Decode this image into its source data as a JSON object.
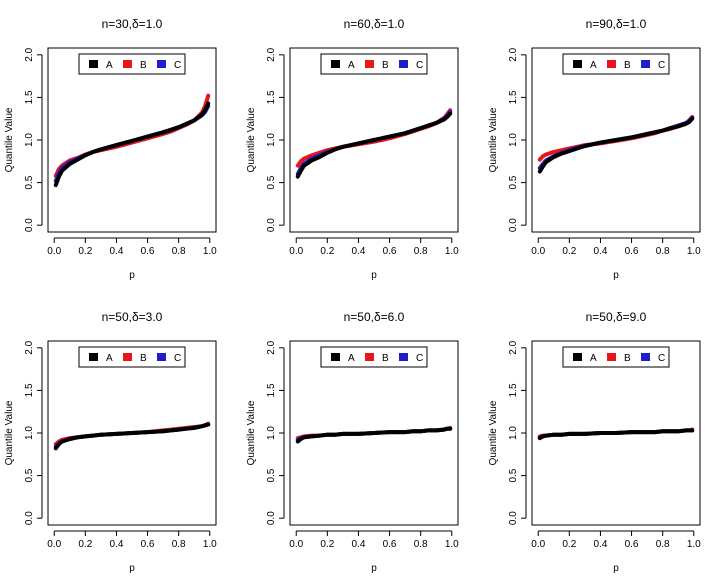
{
  "figure": {
    "background": "#ffffff"
  },
  "chart_data": [
    {
      "type": "line",
      "title": "n=30,δ=1.0",
      "xlabel": "p",
      "ylabel": "Quantile Value",
      "xlim": [
        -0.04,
        1.04
      ],
      "ylim": [
        -0.08,
        2.08
      ],
      "xticks": [
        "0.0",
        "0.2",
        "0.4",
        "0.6",
        "0.8",
        "1.0"
      ],
      "yticks": [
        "0.0",
        "0.5",
        "1.0",
        "1.5",
        "2.0"
      ],
      "legend": {
        "position": "top",
        "entries": [
          "A",
          "B",
          "C"
        ]
      },
      "x": [
        0.01,
        0.03,
        0.05,
        0.1,
        0.15,
        0.2,
        0.25,
        0.3,
        0.4,
        0.5,
        0.6,
        0.7,
        0.75,
        0.8,
        0.85,
        0.9,
        0.95,
        0.97,
        0.99
      ],
      "series": [
        {
          "name": "B",
          "color": "#e8161b",
          "values": [
            0.58,
            0.66,
            0.7,
            0.76,
            0.79,
            0.83,
            0.86,
            0.88,
            0.92,
            0.97,
            1.02,
            1.07,
            1.1,
            1.14,
            1.18,
            1.23,
            1.32,
            1.4,
            1.52
          ]
        },
        {
          "name": "C",
          "color": "#1f1fc8",
          "values": [
            0.52,
            0.61,
            0.67,
            0.74,
            0.78,
            0.82,
            0.86,
            0.89,
            0.94,
            0.99,
            1.04,
            1.09,
            1.12,
            1.15,
            1.19,
            1.23,
            1.29,
            1.33,
            1.4
          ]
        },
        {
          "name": "A",
          "color": "#000000",
          "values": [
            0.47,
            0.57,
            0.64,
            0.72,
            0.77,
            0.82,
            0.86,
            0.89,
            0.94,
            0.99,
            1.04,
            1.09,
            1.12,
            1.15,
            1.19,
            1.23,
            1.3,
            1.35,
            1.43
          ]
        }
      ]
    },
    {
      "type": "line",
      "title": "n=60,δ=1.0",
      "xlabel": "p",
      "ylabel": "Quantile Value",
      "xlim": [
        -0.04,
        1.04
      ],
      "ylim": [
        -0.08,
        2.08
      ],
      "xticks": [
        "0.0",
        "0.2",
        "0.4",
        "0.6",
        "0.8",
        "1.0"
      ],
      "yticks": [
        "0.0",
        "0.5",
        "1.0",
        "1.5",
        "2.0"
      ],
      "legend": {
        "position": "top",
        "entries": [
          "A",
          "B",
          "C"
        ]
      },
      "x": [
        0.01,
        0.03,
        0.05,
        0.1,
        0.15,
        0.2,
        0.25,
        0.3,
        0.4,
        0.5,
        0.6,
        0.7,
        0.75,
        0.8,
        0.85,
        0.9,
        0.95,
        0.97,
        0.99
      ],
      "series": [
        {
          "name": "B",
          "color": "#e8161b",
          "values": [
            0.7,
            0.75,
            0.78,
            0.82,
            0.85,
            0.88,
            0.9,
            0.92,
            0.95,
            0.98,
            1.02,
            1.07,
            1.1,
            1.13,
            1.16,
            1.2,
            1.26,
            1.3,
            1.35
          ]
        },
        {
          "name": "C",
          "color": "#1f1fc8",
          "values": [
            0.6,
            0.67,
            0.72,
            0.78,
            0.82,
            0.86,
            0.89,
            0.92,
            0.96,
            1.0,
            1.04,
            1.08,
            1.11,
            1.14,
            1.17,
            1.2,
            1.25,
            1.28,
            1.33
          ]
        },
        {
          "name": "A",
          "color": "#000000",
          "values": [
            0.57,
            0.64,
            0.7,
            0.76,
            0.8,
            0.85,
            0.89,
            0.92,
            0.96,
            1.0,
            1.04,
            1.08,
            1.11,
            1.14,
            1.17,
            1.2,
            1.24,
            1.27,
            1.31
          ]
        }
      ]
    },
    {
      "type": "line",
      "title": "n=90,δ=1.0",
      "xlabel": "p",
      "ylabel": "Quantile Value",
      "xlim": [
        -0.04,
        1.04
      ],
      "ylim": [
        -0.08,
        2.08
      ],
      "xticks": [
        "0.0",
        "0.2",
        "0.4",
        "0.6",
        "0.8",
        "1.0"
      ],
      "yticks": [
        "0.0",
        "0.5",
        "1.0",
        "1.5",
        "2.0"
      ],
      "legend": {
        "position": "top",
        "entries": [
          "A",
          "B",
          "C"
        ]
      },
      "x": [
        0.01,
        0.03,
        0.05,
        0.1,
        0.15,
        0.2,
        0.25,
        0.3,
        0.4,
        0.5,
        0.6,
        0.7,
        0.75,
        0.8,
        0.85,
        0.9,
        0.95,
        0.97,
        0.99
      ],
      "series": [
        {
          "name": "B",
          "color": "#e8161b",
          "values": [
            0.77,
            0.81,
            0.83,
            0.86,
            0.88,
            0.9,
            0.92,
            0.94,
            0.96,
            0.99,
            1.02,
            1.06,
            1.08,
            1.11,
            1.13,
            1.16,
            1.2,
            1.23,
            1.27
          ]
        },
        {
          "name": "C",
          "color": "#1f1fc8",
          "values": [
            0.67,
            0.72,
            0.76,
            0.81,
            0.85,
            0.88,
            0.91,
            0.93,
            0.97,
            1.0,
            1.03,
            1.07,
            1.09,
            1.11,
            1.14,
            1.17,
            1.2,
            1.22,
            1.26
          ]
        },
        {
          "name": "A",
          "color": "#000000",
          "values": [
            0.63,
            0.69,
            0.74,
            0.8,
            0.84,
            0.87,
            0.9,
            0.93,
            0.97,
            1.0,
            1.03,
            1.07,
            1.09,
            1.11,
            1.14,
            1.16,
            1.19,
            1.21,
            1.25
          ]
        }
      ]
    },
    {
      "type": "line",
      "title": "n=50,δ=3.0",
      "xlabel": "p",
      "ylabel": "Quantile Value",
      "xlim": [
        -0.04,
        1.04
      ],
      "ylim": [
        -0.08,
        2.08
      ],
      "xticks": [
        "0.0",
        "0.2",
        "0.4",
        "0.6",
        "0.8",
        "1.0"
      ],
      "yticks": [
        "0.0",
        "0.5",
        "1.0",
        "1.5",
        "2.0"
      ],
      "legend": {
        "position": "top",
        "entries": [
          "A",
          "B",
          "C"
        ]
      },
      "x": [
        0.01,
        0.03,
        0.05,
        0.1,
        0.15,
        0.2,
        0.25,
        0.3,
        0.4,
        0.5,
        0.6,
        0.7,
        0.75,
        0.8,
        0.85,
        0.9,
        0.95,
        0.97,
        0.99
      ],
      "series": [
        {
          "name": "B",
          "color": "#e8161b",
          "values": [
            0.87,
            0.9,
            0.92,
            0.94,
            0.95,
            0.96,
            0.97,
            0.98,
            0.99,
            1.0,
            1.01,
            1.03,
            1.04,
            1.05,
            1.06,
            1.07,
            1.08,
            1.09,
            1.11
          ]
        },
        {
          "name": "C",
          "color": "#1f1fc8",
          "values": [
            0.84,
            0.88,
            0.9,
            0.93,
            0.95,
            0.96,
            0.97,
            0.98,
            0.99,
            1.0,
            1.01,
            1.02,
            1.03,
            1.04,
            1.05,
            1.06,
            1.08,
            1.09,
            1.1
          ]
        },
        {
          "name": "A",
          "color": "#000000",
          "values": [
            0.82,
            0.87,
            0.9,
            0.93,
            0.95,
            0.96,
            0.97,
            0.98,
            0.99,
            1.0,
            1.01,
            1.02,
            1.03,
            1.04,
            1.05,
            1.06,
            1.08,
            1.09,
            1.1
          ]
        }
      ]
    },
    {
      "type": "line",
      "title": "n=50,δ=6.0",
      "xlabel": "p",
      "ylabel": "Quantile Value",
      "xlim": [
        -0.04,
        1.04
      ],
      "ylim": [
        -0.08,
        2.08
      ],
      "xticks": [
        "0.0",
        "0.2",
        "0.4",
        "0.6",
        "0.8",
        "1.0"
      ],
      "yticks": [
        "0.0",
        "0.5",
        "1.0",
        "1.5",
        "2.0"
      ],
      "legend": {
        "position": "top",
        "entries": [
          "A",
          "B",
          "C"
        ]
      },
      "x": [
        0.01,
        0.03,
        0.05,
        0.1,
        0.15,
        0.2,
        0.25,
        0.3,
        0.4,
        0.5,
        0.6,
        0.7,
        0.75,
        0.8,
        0.85,
        0.9,
        0.95,
        0.97,
        0.99
      ],
      "series": [
        {
          "name": "B",
          "color": "#e8161b",
          "values": [
            0.94,
            0.95,
            0.96,
            0.97,
            0.97,
            0.98,
            0.98,
            0.99,
            0.99,
            1.0,
            1.01,
            1.01,
            1.02,
            1.02,
            1.03,
            1.03,
            1.04,
            1.05,
            1.06
          ]
        },
        {
          "name": "C",
          "color": "#1f1fc8",
          "values": [
            0.92,
            0.94,
            0.95,
            0.96,
            0.97,
            0.98,
            0.98,
            0.99,
            0.99,
            1.0,
            1.01,
            1.01,
            1.02,
            1.02,
            1.03,
            1.03,
            1.04,
            1.05,
            1.05
          ]
        },
        {
          "name": "A",
          "color": "#000000",
          "values": [
            0.9,
            0.93,
            0.95,
            0.96,
            0.97,
            0.98,
            0.98,
            0.99,
            0.99,
            1.0,
            1.01,
            1.01,
            1.02,
            1.02,
            1.03,
            1.03,
            1.04,
            1.05,
            1.05
          ]
        }
      ]
    },
    {
      "type": "line",
      "title": "n=50,δ=9.0",
      "xlabel": "p",
      "ylabel": "Quantile Value",
      "xlim": [
        -0.04,
        1.04
      ],
      "ylim": [
        -0.08,
        2.08
      ],
      "xticks": [
        "0.0",
        "0.2",
        "0.4",
        "0.6",
        "0.8",
        "1.0"
      ],
      "yticks": [
        "0.0",
        "0.5",
        "1.0",
        "1.5",
        "2.0"
      ],
      "legend": {
        "position": "top",
        "entries": [
          "A",
          "B",
          "C"
        ]
      },
      "x": [
        0.01,
        0.03,
        0.05,
        0.1,
        0.15,
        0.2,
        0.25,
        0.3,
        0.4,
        0.5,
        0.6,
        0.7,
        0.75,
        0.8,
        0.85,
        0.9,
        0.95,
        0.97,
        0.99
      ],
      "series": [
        {
          "name": "B",
          "color": "#e8161b",
          "values": [
            0.96,
            0.97,
            0.97,
            0.98,
            0.98,
            0.99,
            0.99,
            0.99,
            1.0,
            1.0,
            1.01,
            1.01,
            1.01,
            1.02,
            1.02,
            1.02,
            1.03,
            1.03,
            1.04
          ]
        },
        {
          "name": "C",
          "color": "#1f1fc8",
          "values": [
            0.95,
            0.96,
            0.97,
            0.98,
            0.98,
            0.99,
            0.99,
            0.99,
            1.0,
            1.0,
            1.01,
            1.01,
            1.01,
            1.02,
            1.02,
            1.02,
            1.03,
            1.03,
            1.03
          ]
        },
        {
          "name": "A",
          "color": "#000000",
          "values": [
            0.94,
            0.96,
            0.97,
            0.98,
            0.98,
            0.99,
            0.99,
            0.99,
            1.0,
            1.0,
            1.01,
            1.01,
            1.01,
            1.02,
            1.02,
            1.02,
            1.03,
            1.03,
            1.03
          ]
        }
      ]
    }
  ]
}
